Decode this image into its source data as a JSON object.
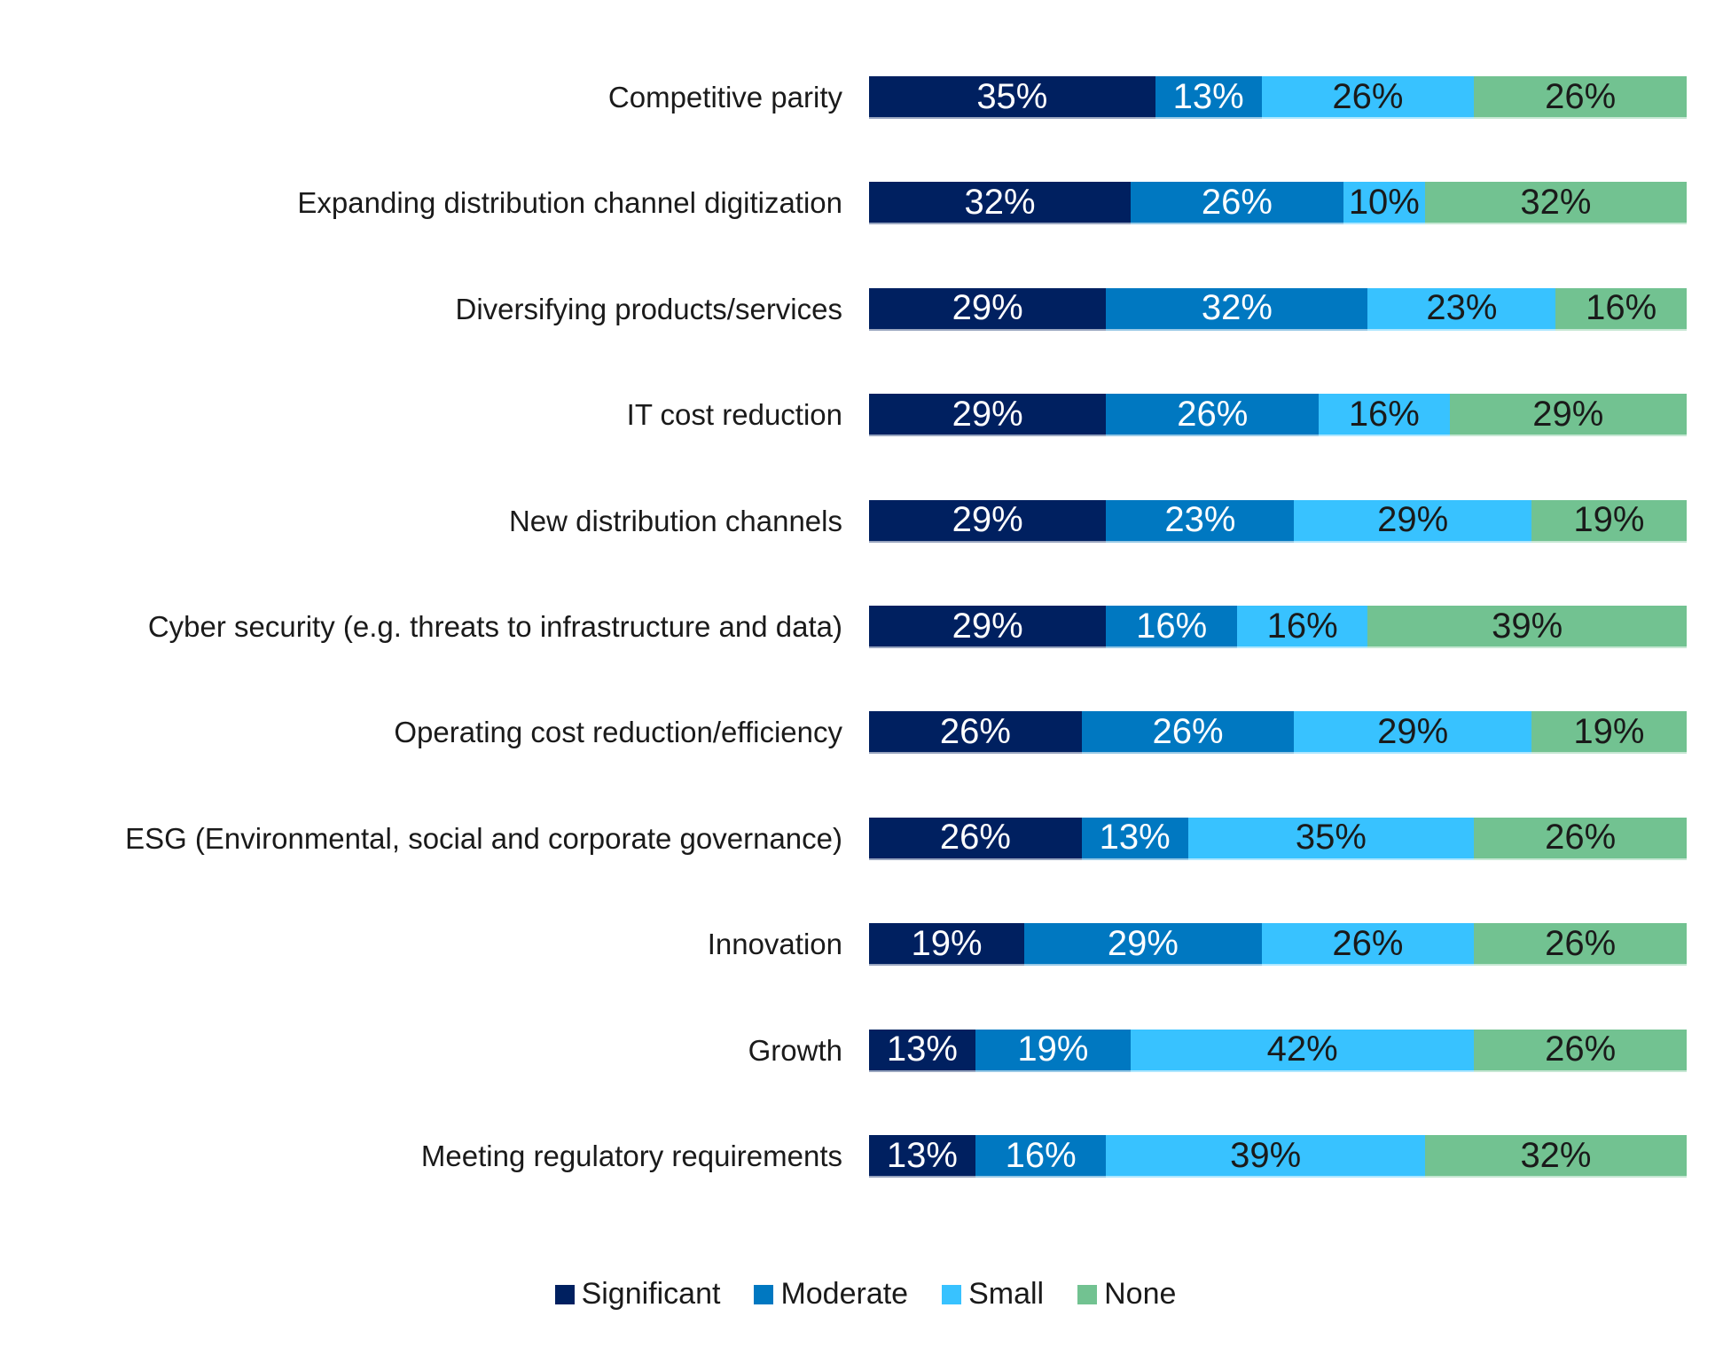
{
  "chart_data": {
    "type": "bar",
    "orientation": "horizontal-stacked-100",
    "title": "",
    "xlabel": "",
    "ylabel": "",
    "xlim": [
      0,
      100
    ],
    "grid": false,
    "legend_position": "bottom-center",
    "categories": [
      "Competitive parity",
      "Expanding distribution channel digitization",
      "Diversifying products/services",
      "IT cost reduction",
      "New distribution channels",
      "Cyber security (e.g. threats to infrastructure and data)",
      "Operating cost reduction/efficiency",
      "ESG (Environmental, social and corporate governance)",
      "Innovation",
      "Growth",
      "Meeting regulatory requirements"
    ],
    "series": [
      {
        "name": "Significant",
        "color": "#002060",
        "label_color": "#ffffff",
        "values": [
          35,
          32,
          29,
          29,
          29,
          29,
          26,
          26,
          19,
          13,
          13
        ]
      },
      {
        "name": "Moderate",
        "color": "#0078C1",
        "label_color": "#ffffff",
        "values": [
          13,
          26,
          32,
          26,
          23,
          16,
          26,
          13,
          29,
          19,
          16
        ]
      },
      {
        "name": "Small",
        "color": "#38C2FF",
        "label_color": "#1a1a1a",
        "values": [
          26,
          10,
          23,
          16,
          29,
          16,
          29,
          35,
          26,
          42,
          39
        ]
      },
      {
        "name": "None",
        "color": "#72C291",
        "label_color": "#1a1a1a",
        "values": [
          26,
          32,
          16,
          29,
          19,
          39,
          19,
          26,
          26,
          26,
          32
        ]
      }
    ],
    "value_suffix": "%"
  }
}
